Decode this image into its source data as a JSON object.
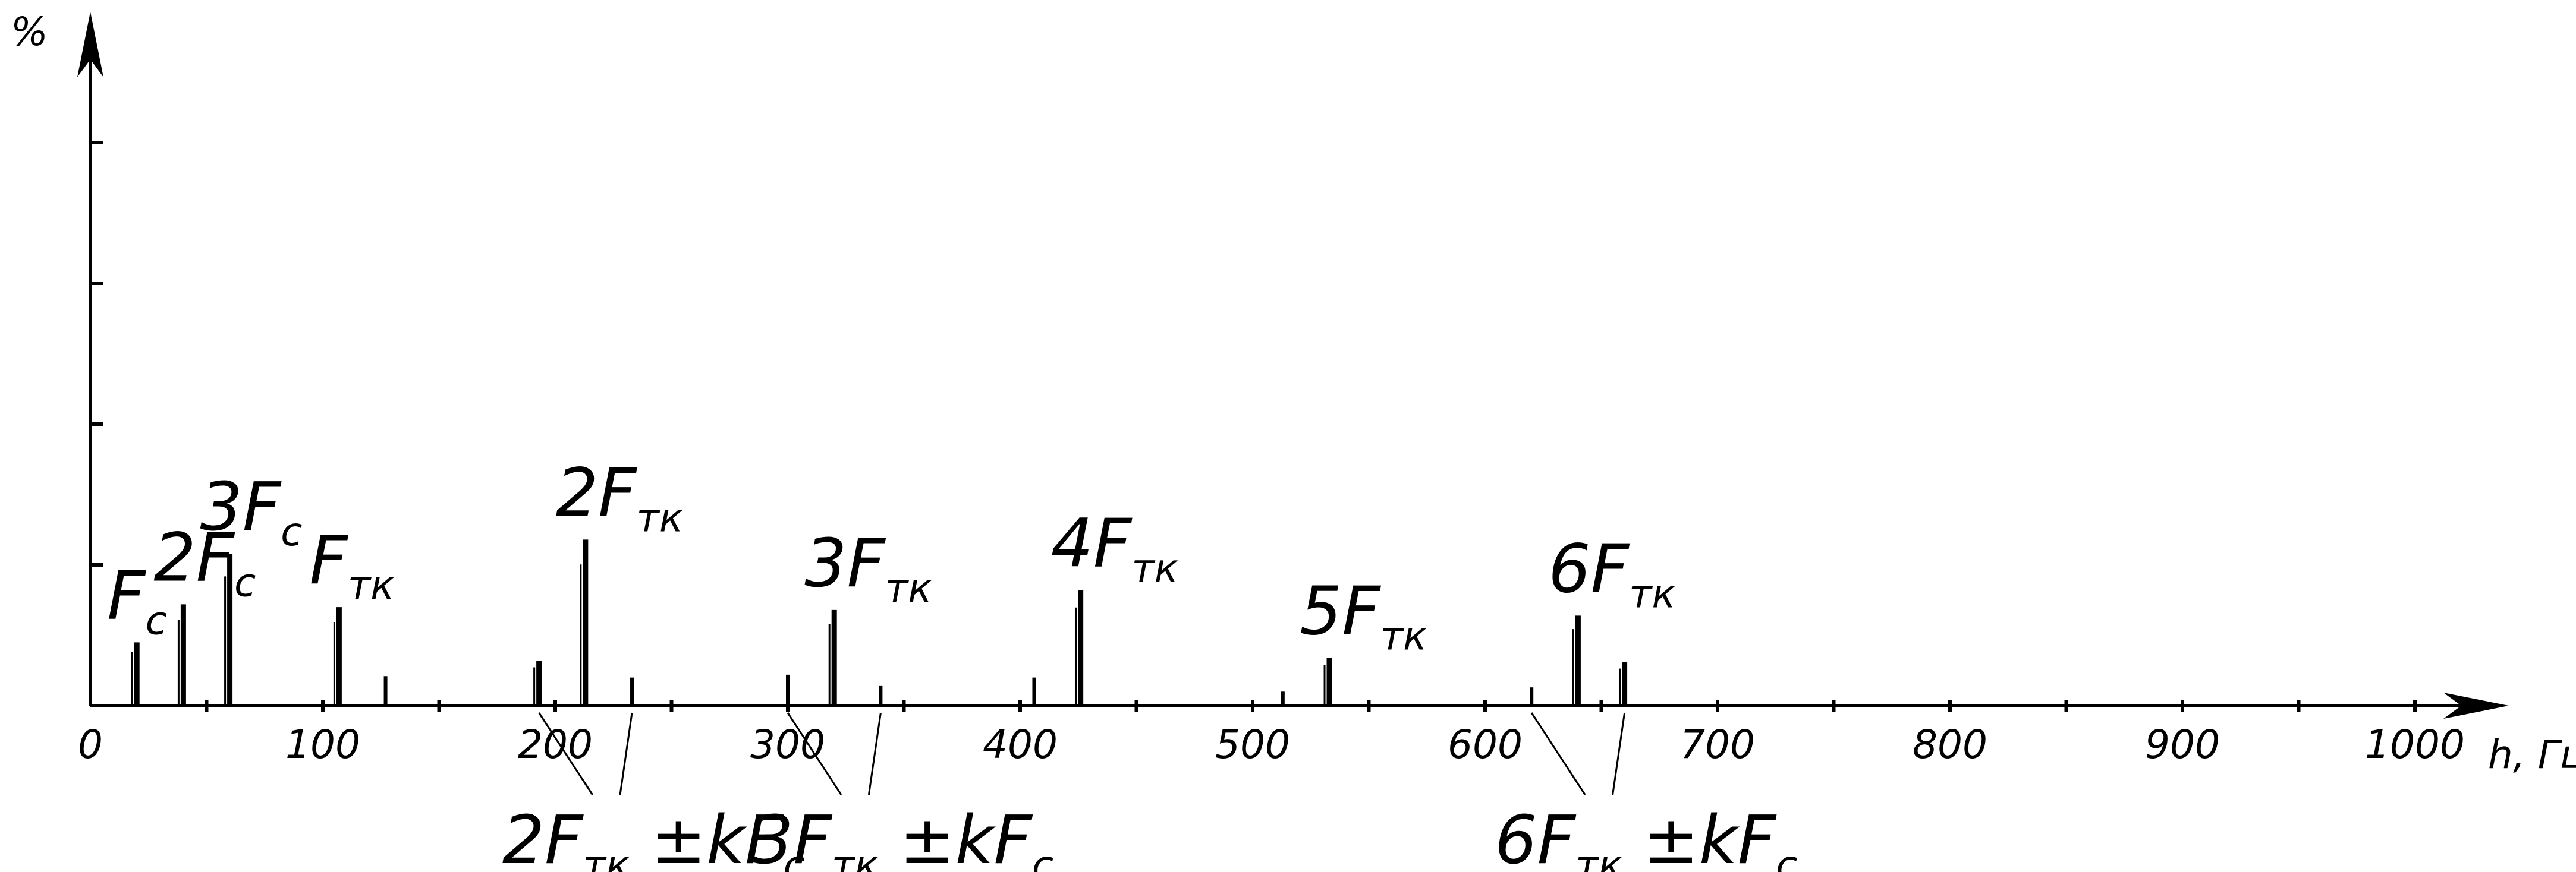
{
  "chart_data": {
    "type": "bar",
    "title": "",
    "xlabel": "h, Гц",
    "ylabel": "%",
    "xlim": [
      0,
      1030
    ],
    "ylim": [
      0,
      6
    ],
    "x_ticks": [
      0,
      100,
      200,
      300,
      400,
      500,
      600,
      700,
      800,
      900,
      1000
    ],
    "x_minor_step": 50,
    "y_ticks": [
      0,
      1,
      2,
      3,
      4
    ],
    "grid": false,
    "legend": "none",
    "series": [
      {
        "values": [
          {
            "x": 20,
            "y": 0.45
          },
          {
            "x": 40,
            "y": 0.72
          },
          {
            "x": 60,
            "y": 1.08
          },
          {
            "x": 107,
            "y": 0.7
          },
          {
            "x": 127,
            "y": 0.21
          },
          {
            "x": 193,
            "y": 0.32
          },
          {
            "x": 213,
            "y": 1.18
          },
          {
            "x": 233,
            "y": 0.2
          },
          {
            "x": 300,
            "y": 0.22
          },
          {
            "x": 320,
            "y": 0.68
          },
          {
            "x": 340,
            "y": 0.14
          },
          {
            "x": 406,
            "y": 0.2
          },
          {
            "x": 426,
            "y": 0.82
          },
          {
            "x": 513,
            "y": 0.1
          },
          {
            "x": 533,
            "y": 0.34
          },
          {
            "x": 620,
            "y": 0.13
          },
          {
            "x": 640,
            "y": 0.64
          },
          {
            "x": 660,
            "y": 0.31
          }
        ]
      }
    ],
    "annotations": [
      {
        "main": "F",
        "sub": "c",
        "x": 20,
        "y": 0.45
      },
      {
        "main": "2F",
        "sub": "c",
        "x": 40,
        "y": 0.72
      },
      {
        "main": "3F",
        "sub": "c",
        "x": 60,
        "y": 1.08
      },
      {
        "main": "F",
        "sub": "тк",
        "x": 107,
        "y": 0.7
      },
      {
        "main": "2F",
        "sub": "тк",
        "x": 213,
        "y": 1.18
      },
      {
        "main": "3F",
        "sub": "тк",
        "x": 320,
        "y": 0.68
      },
      {
        "main": "4F",
        "sub": "тк",
        "x": 426,
        "y": 0.82
      },
      {
        "main": "5F",
        "sub": "тк",
        "x": 533,
        "y": 0.34
      },
      {
        "main": "6F",
        "sub": "тк",
        "x": 640,
        "y": 0.64
      }
    ],
    "sideband_labels": [
      {
        "text": [
          "2F",
          "тк",
          " ±kF",
          "c"
        ],
        "targets": [
          193,
          233
        ]
      },
      {
        "text": [
          "3F",
          "тк",
          " ±kF",
          "c"
        ],
        "targets": [
          300,
          340
        ]
      },
      {
        "text": [
          "6F",
          "тк",
          " ±kF",
          "c"
        ],
        "targets": [
          620,
          660
        ]
      }
    ]
  }
}
